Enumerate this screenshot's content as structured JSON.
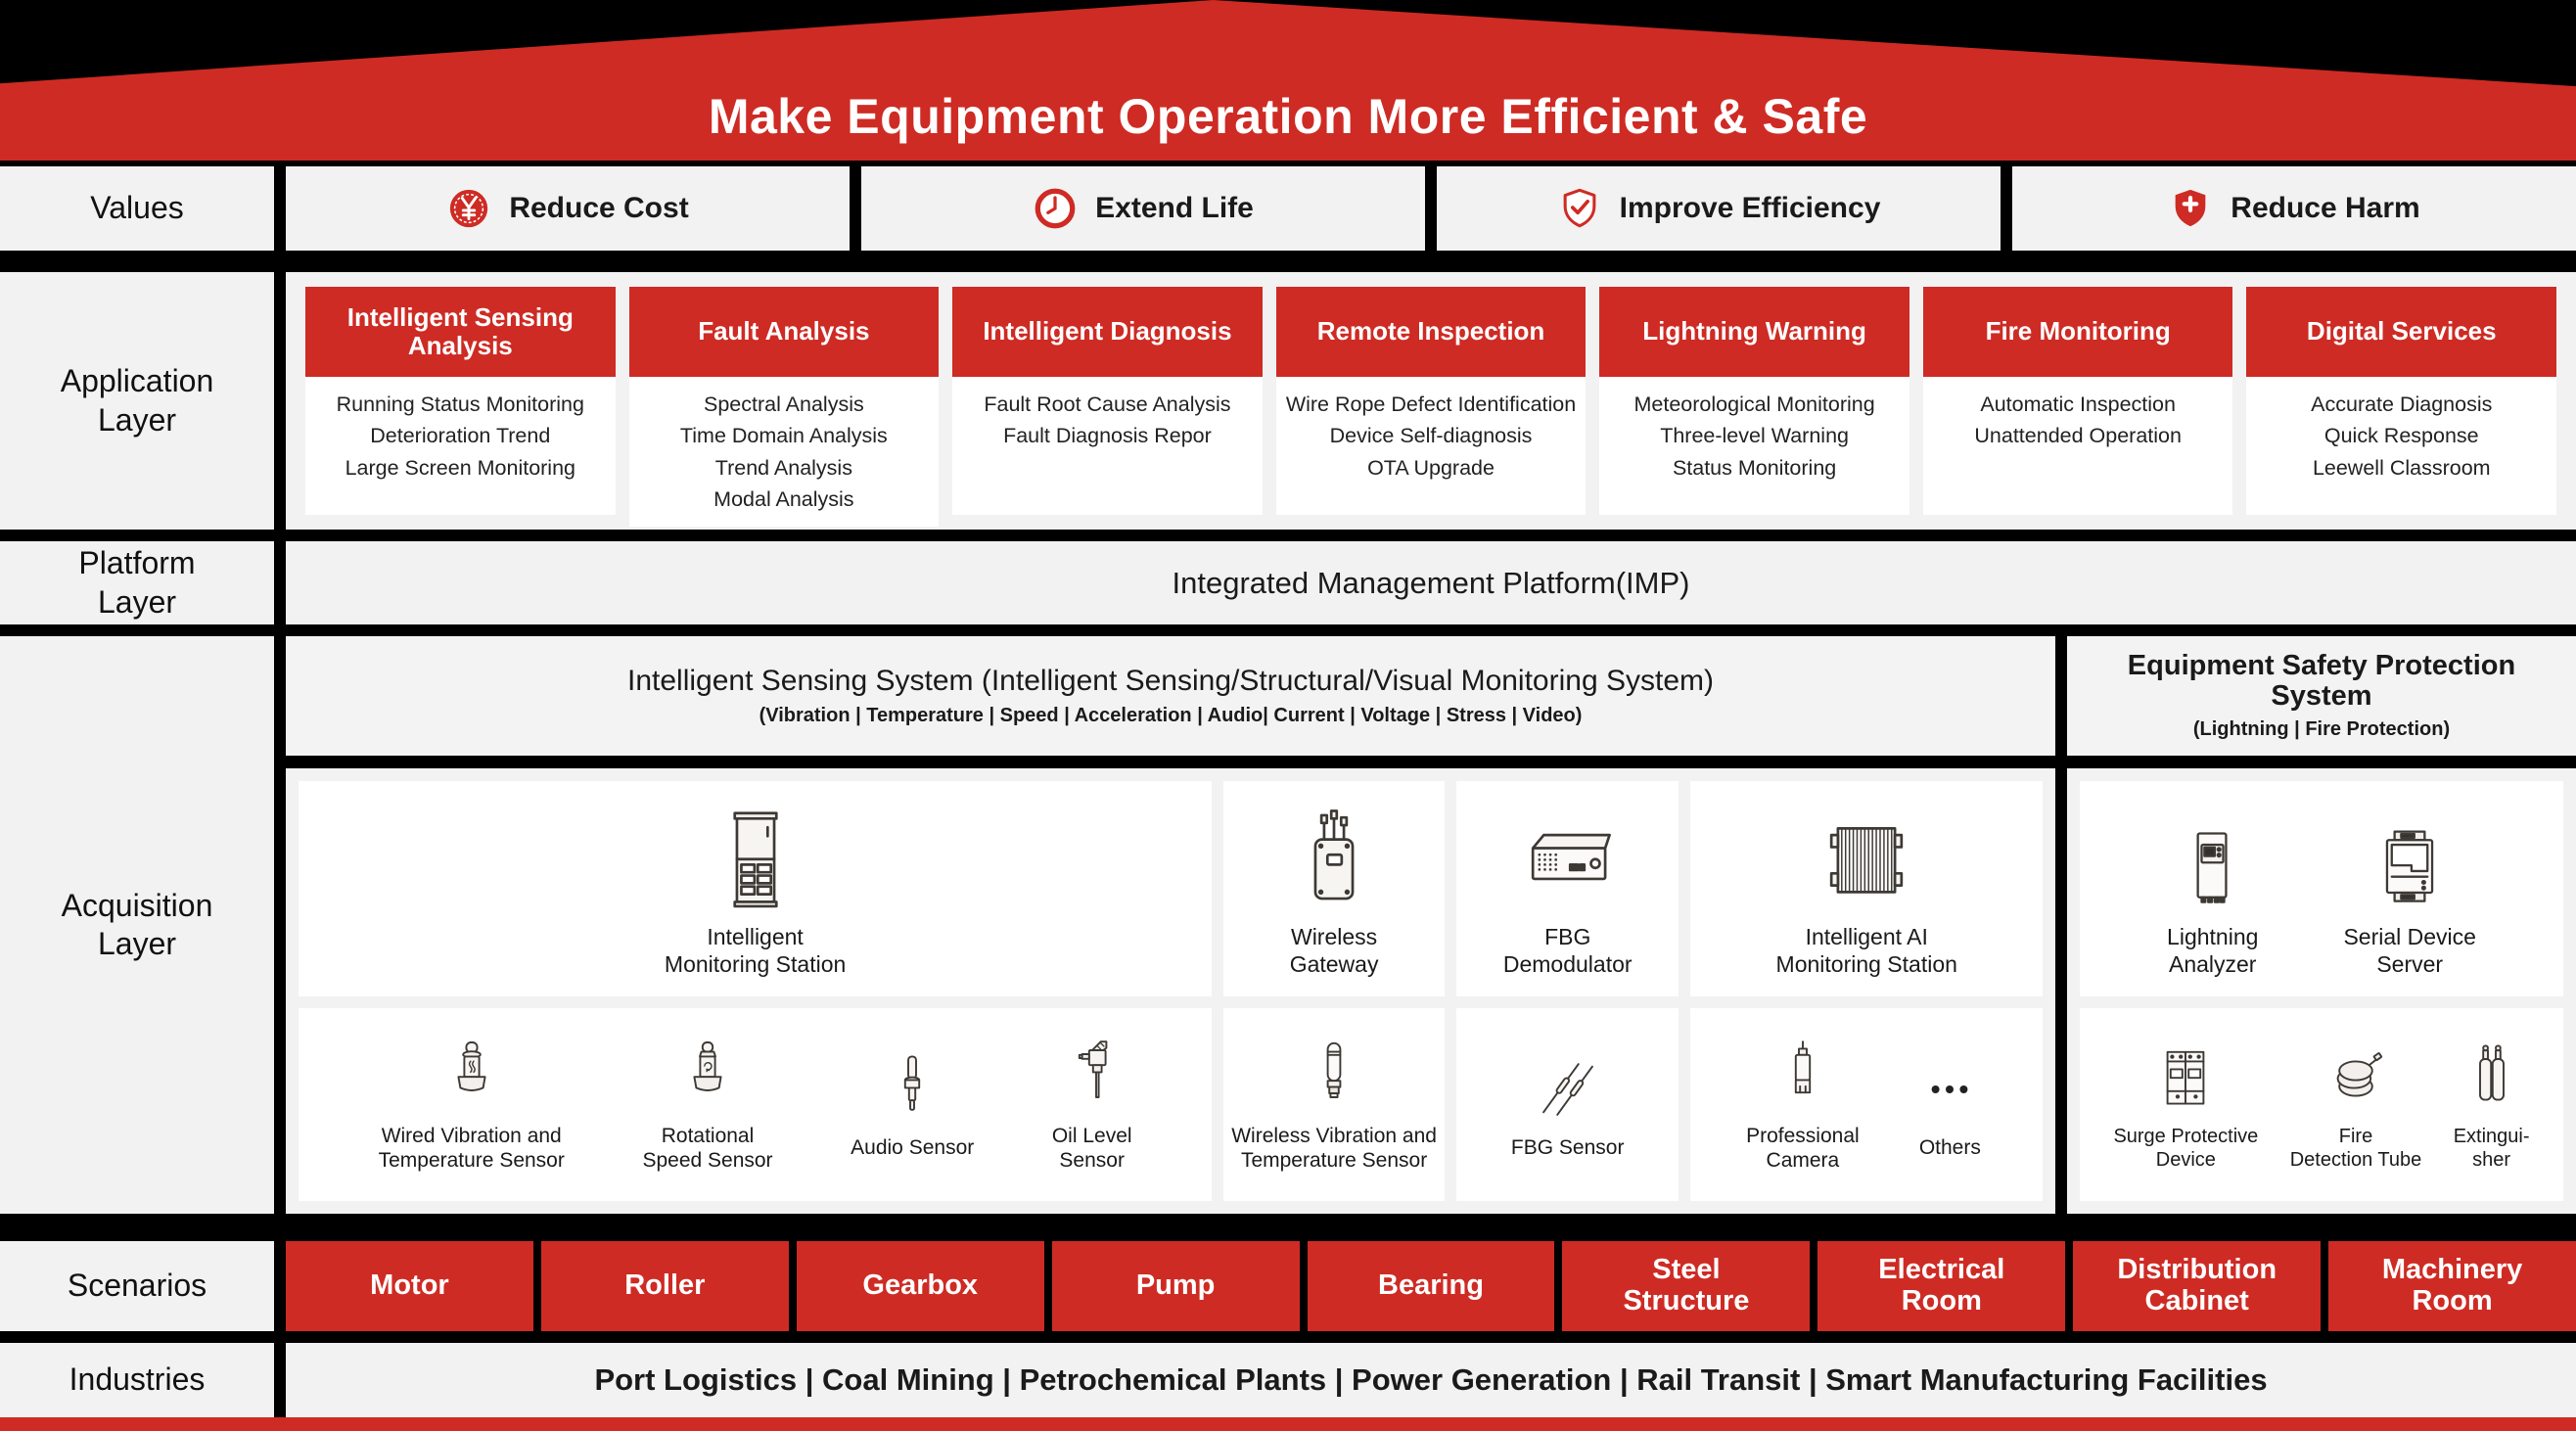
{
  "title": "Make Equipment Operation More Efficient & Safe",
  "colors": {
    "accent_red": "#CE2B24",
    "background": "#000000",
    "panel_gray": "#F2F2F2",
    "card_white": "#FFFFFF"
  },
  "values_row": {
    "label": "Values",
    "items": [
      {
        "label": "Reduce Cost",
        "icon": "yen-coin-icon"
      },
      {
        "label": "Extend Life",
        "icon": "clock-icon"
      },
      {
        "label": "Improve Efficiency",
        "icon": "shield-check-icon"
      },
      {
        "label": "Reduce Harm",
        "icon": "shield-cross-icon"
      }
    ]
  },
  "application_layer": {
    "label": "Application\nLayer",
    "columns": [
      {
        "header": "Intelligent Sensing Analysis",
        "items": [
          "Running Status Monitoring",
          "Deterioration Trend",
          "Large Screen Monitoring"
        ]
      },
      {
        "header": "Fault Analysis",
        "items": [
          "Spectral Analysis",
          "Time Domain Analysis",
          "Trend Analysis",
          "Modal Analysis"
        ]
      },
      {
        "header": "Intelligent Diagnosis",
        "items": [
          "Fault Root Cause Analysis",
          "Fault Diagnosis Repor"
        ]
      },
      {
        "header": "Remote Inspection",
        "items": [
          "Wire Rope Defect Identification",
          "Device Self-diagnosis",
          "OTA Upgrade"
        ]
      },
      {
        "header": "Lightning Warning",
        "items": [
          "Meteorological Monitoring",
          "Three-level Warning",
          "Status Monitoring"
        ]
      },
      {
        "header": "Fire Monitoring",
        "items": [
          "Automatic Inspection",
          "Unattended Operation"
        ]
      },
      {
        "header": "Digital Services",
        "items": [
          "Accurate Diagnosis",
          "Quick Response",
          "Leewell Classroom"
        ]
      }
    ]
  },
  "platform_layer": {
    "label": "Platform\nLayer",
    "text": "Integrated Management Platform(IMP)"
  },
  "acquisition_layer": {
    "label": "Acquisition\nLayer",
    "sensing_system": {
      "title": "Intelligent Sensing System (Intelligent Sensing/Structural/Visual Monitoring System)",
      "subtitle": "(Vibration | Temperature | Speed | Acceleration | Audio| Current | Voltage | Stress | Video)",
      "row1_cells": [
        {
          "devices": [
            {
              "label": "Intelligent\nMonitoring Station",
              "icon": "monitoring-station-icon"
            }
          ]
        },
        {
          "devices": [
            {
              "label": "Wireless\nGateway",
              "icon": "wireless-gateway-icon"
            }
          ]
        },
        {
          "devices": [
            {
              "label": "FBG\nDemodulator",
              "icon": "fbg-demodulator-icon"
            }
          ]
        },
        {
          "devices": [
            {
              "label": "Intelligent AI\nMonitoring Station",
              "icon": "ai-monitoring-station-icon"
            }
          ]
        }
      ],
      "row2_cells": [
        {
          "devices": [
            {
              "label": "Wired Vibration and\nTemperature Sensor",
              "icon": "wired-vibration-sensor-icon"
            },
            {
              "label": "Rotational\nSpeed Sensor",
              "icon": "rotational-speed-sensor-icon"
            },
            {
              "label": "Audio Sensor",
              "icon": "audio-sensor-icon"
            },
            {
              "label": "Oil Level\nSensor",
              "icon": "oil-level-sensor-icon"
            }
          ]
        },
        {
          "devices": [
            {
              "label": "Wireless Vibration and\nTemperature Sensor",
              "icon": "wireless-vibration-sensor-icon"
            }
          ]
        },
        {
          "devices": [
            {
              "label": "FBG Sensor",
              "icon": "fbg-sensor-icon"
            }
          ]
        },
        {
          "devices": [
            {
              "label": "Professional\nCamera",
              "icon": "professional-camera-icon"
            },
            {
              "label": "Others",
              "icon": "others-icon"
            }
          ]
        }
      ]
    },
    "safety_system": {
      "title": "Equipment Safety Protection System",
      "subtitle": "(Lightning | Fire Protection)",
      "row1_cells": [
        {
          "devices": [
            {
              "label": "Lightning\nAnalyzer",
              "icon": "lightning-analyzer-icon"
            },
            {
              "label": "Serial Device\nServer",
              "icon": "serial-device-server-icon"
            }
          ]
        }
      ],
      "row2_cells": [
        {
          "devices": [
            {
              "label": "Surge Protective\nDevice",
              "icon": "surge-protective-device-icon"
            },
            {
              "label": "Fire\nDetection Tube",
              "icon": "fire-detection-tube-icon"
            },
            {
              "label": "Extingui-\nsher",
              "icon": "extinguisher-icon"
            }
          ]
        }
      ]
    }
  },
  "scenarios": {
    "label": "Scenarios",
    "items": [
      "Motor",
      "Roller",
      "Gearbox",
      "Pump",
      "Bearing",
      "Steel\nStructure",
      "Electrical\nRoom",
      "Distribution\nCabinet",
      "Machinery\nRoom"
    ]
  },
  "industries": {
    "label": "Industries",
    "text": "Port Logistics | Coal Mining | Petrochemical Plants | Power Generation | Rail Transit | Smart Manufacturing Facilities"
  }
}
